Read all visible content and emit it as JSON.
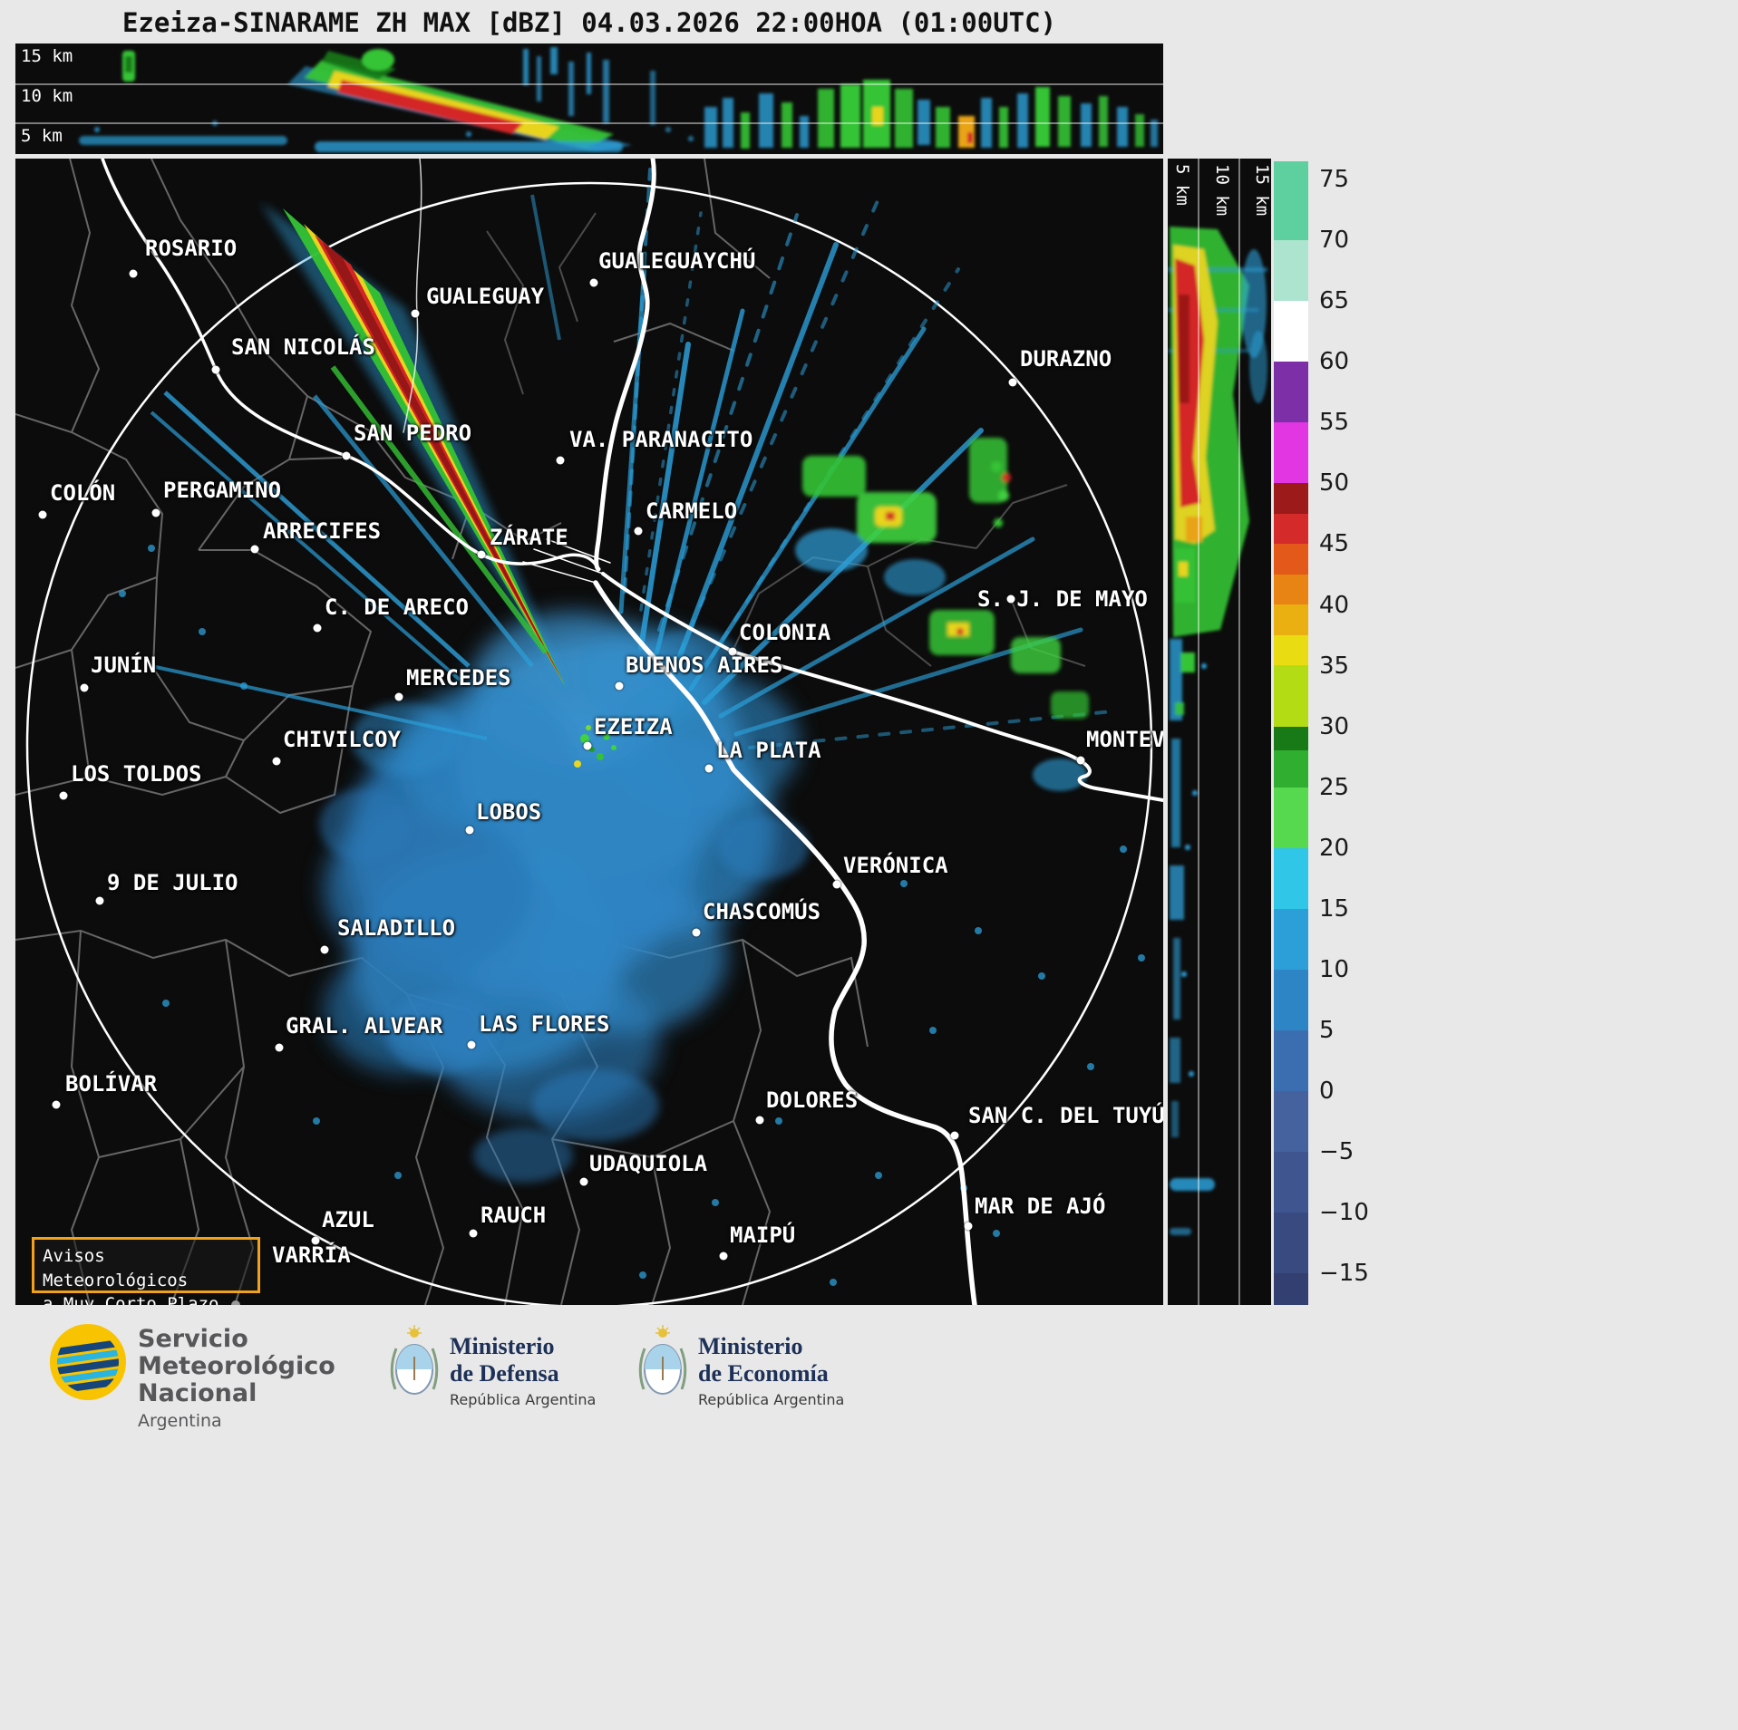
{
  "title": "Ezeiza-SINARAME ZH MAX [dBZ] 04.03.2026 22:00HOA (01:00UTC)",
  "top_profile": {
    "axis_labels": [
      "15 km",
      "10 km",
      "5 km"
    ]
  },
  "right_profile": {
    "axis_labels": [
      "5 km",
      "10 km",
      "15 km"
    ]
  },
  "colorbar": {
    "cap_top": 0.3,
    "ticks": [
      "75",
      "70",
      "65",
      "60",
      "55",
      "50",
      "45",
      "40",
      "35",
      "30",
      "25",
      "20",
      "15",
      "10",
      "5",
      "0",
      "−5",
      "−10",
      "−15"
    ],
    "segments": [
      {
        "h": 1.3,
        "color": "#5ecf9e"
      },
      {
        "h": 1,
        "color": "#ace4cf"
      },
      {
        "h": 1,
        "color": "#ffffff"
      },
      {
        "h": 1,
        "color": "#7c2fa6"
      },
      {
        "h": 1,
        "color": "#e236e2"
      },
      {
        "h": 0.5,
        "color": "#9c1a1a"
      },
      {
        "h": 0.5,
        "color": "#d42a2a"
      },
      {
        "h": 0.5,
        "color": "#e2591a"
      },
      {
        "h": 0.5,
        "color": "#e88414"
      },
      {
        "h": 0.5,
        "color": "#eab012"
      },
      {
        "h": 0.5,
        "color": "#eadc12"
      },
      {
        "h": 1,
        "color": "#b4dc14"
      },
      {
        "h": 0.4,
        "color": "#177a17"
      },
      {
        "h": 0.6,
        "color": "#2fae2f"
      },
      {
        "h": 1,
        "color": "#57d94f"
      },
      {
        "h": 1,
        "color": "#2fc6e8"
      },
      {
        "h": 1,
        "color": "#2c9fd8"
      },
      {
        "h": 1,
        "color": "#2e85c6"
      },
      {
        "h": 1,
        "color": "#3b6eb0"
      },
      {
        "h": 1,
        "color": "#45619e"
      },
      {
        "h": 1,
        "color": "#3e5590"
      },
      {
        "h": 1,
        "color": "#384a80"
      },
      {
        "h": 0.52,
        "color": "#323f70"
      }
    ]
  },
  "map": {
    "alert_box": {
      "line1": "Avisos Meteorológicos",
      "line2": "a Muy Corto Plazo"
    },
    "cities": [
      {
        "name": "ROSARIO",
        "dot": [
          130,
          127
        ],
        "label": [
          143,
          85
        ]
      },
      {
        "name": "GUALEGUAYCHÚ",
        "dot": [
          638,
          137
        ],
        "label": [
          643,
          99
        ]
      },
      {
        "name": "GUALEGUAY",
        "dot": [
          441,
          171
        ],
        "label": [
          453,
          138
        ]
      },
      {
        "name": "SAN NICOLÁS",
        "dot": [
          221,
          233
        ],
        "label": [
          238,
          194
        ]
      },
      {
        "name": "DURAZNO",
        "dot": [
          1100,
          247
        ],
        "label": [
          1108,
          207
        ]
      },
      {
        "name": "SAN PEDRO",
        "dot": [
          365,
          328
        ],
        "label": [
          373,
          289
        ]
      },
      {
        "name": "VA. PARANACITO",
        "dot": [
          601,
          333
        ],
        "label": [
          611,
          296
        ]
      },
      {
        "name": "COLÓN",
        "dot": [
          30,
          393
        ],
        "label": [
          38,
          355
        ]
      },
      {
        "name": "PERGAMINO",
        "dot": [
          155,
          391
        ],
        "label": [
          163,
          352
        ]
      },
      {
        "name": "ARRECIFES",
        "dot": [
          264,
          431
        ],
        "label": [
          273,
          397
        ]
      },
      {
        "name": "CARMELO",
        "dot": [
          687,
          411
        ],
        "label": [
          695,
          375
        ]
      },
      {
        "name": "ZÁRATE",
        "dot": [
          514,
          437
        ],
        "label": [
          523,
          404
        ]
      },
      {
        "name": "C. DE ARECO",
        "dot": [
          333,
          518
        ],
        "label": [
          341,
          481
        ]
      },
      {
        "name": "S. J. DE MAYO",
        "dot": [
          1098,
          486
        ],
        "label": [
          1061,
          472
        ]
      },
      {
        "name": "COLONIA",
        "dot": [
          791,
          544
        ],
        "label": [
          798,
          509
        ]
      },
      {
        "name": "JUNÍN",
        "dot": [
          76,
          584
        ],
        "label": [
          83,
          545
        ]
      },
      {
        "name": "MERCEDES",
        "dot": [
          423,
          594
        ],
        "label": [
          431,
          559
        ]
      },
      {
        "name": "BUENOS AIRES",
        "dot": [
          666,
          582
        ],
        "label": [
          673,
          545
        ]
      },
      {
        "name": "EZEIZA",
        "dot": [
          631,
          648
        ],
        "label": [
          638,
          613
        ]
      },
      {
        "name": "CHIVILCOY",
        "dot": [
          288,
          665
        ],
        "label": [
          295,
          627
        ]
      },
      {
        "name": "LA PLATA",
        "dot": [
          765,
          673
        ],
        "label": [
          773,
          639
        ]
      },
      {
        "name": "LOS TOLDOS",
        "dot": [
          53,
          703
        ],
        "label": [
          61,
          665
        ]
      },
      {
        "name": "LOBOS",
        "dot": [
          501,
          741
        ],
        "label": [
          508,
          707
        ]
      },
      {
        "name": "MONTEV",
        "dot": [
          1175,
          664
        ],
        "label": [
          1181,
          627
        ]
      },
      {
        "name": "VERÓNICA",
        "dot": [
          906,
          801
        ],
        "label": [
          913,
          766
        ]
      },
      {
        "name": "9 DE JULIO",
        "dot": [
          93,
          819
        ],
        "label": [
          101,
          785
        ]
      },
      {
        "name": "CHASCOMÚS",
        "dot": [
          751,
          854
        ],
        "label": [
          758,
          817
        ]
      },
      {
        "name": "SALADILLO",
        "dot": [
          341,
          873
        ],
        "label": [
          355,
          835
        ]
      },
      {
        "name": "GRAL. ALVEAR",
        "dot": [
          291,
          981
        ],
        "label": [
          298,
          943
        ]
      },
      {
        "name": "LAS FLORES",
        "dot": [
          503,
          978
        ],
        "label": [
          511,
          941
        ]
      },
      {
        "name": "BOLÍVAR",
        "dot": [
          45,
          1044
        ],
        "label": [
          55,
          1007
        ]
      },
      {
        "name": "DOLORES",
        "dot": [
          821,
          1061
        ],
        "label": [
          828,
          1025
        ]
      },
      {
        "name": "SAN C. DEL TUYÚ",
        "dot": [
          1036,
          1078
        ],
        "label": [
          1051,
          1042
        ]
      },
      {
        "name": "UDAQUIOLA",
        "dot": [
          627,
          1129
        ],
        "label": [
          633,
          1095
        ]
      },
      {
        "name": "RAUCH",
        "dot": [
          505,
          1186
        ],
        "label": [
          513,
          1152
        ]
      },
      {
        "name": "AZUL",
        "dot": [
          331,
          1194
        ],
        "label": [
          338,
          1157
        ]
      },
      {
        "name": "MAR DE AJÓ",
        "dot": [
          1051,
          1178
        ],
        "label": [
          1058,
          1142
        ]
      },
      {
        "name": "MAIPÚ",
        "dot": [
          781,
          1211
        ],
        "label": [
          788,
          1174
        ]
      },
      {
        "name": "VARRÍA",
        "no_dot": true,
        "label": [
          283,
          1196
        ]
      }
    ]
  },
  "footer": {
    "smn": {
      "line1": "Servicio",
      "line2": "Meteorológico",
      "line3": "Nacional",
      "line4": "Argentina"
    },
    "defensa": {
      "line1": "Ministerio",
      "line2": "de Defensa",
      "line3": "República Argentina"
    },
    "economia": {
      "line1": "Ministerio",
      "line2": "de Economía",
      "line3": "República Argentina"
    }
  }
}
